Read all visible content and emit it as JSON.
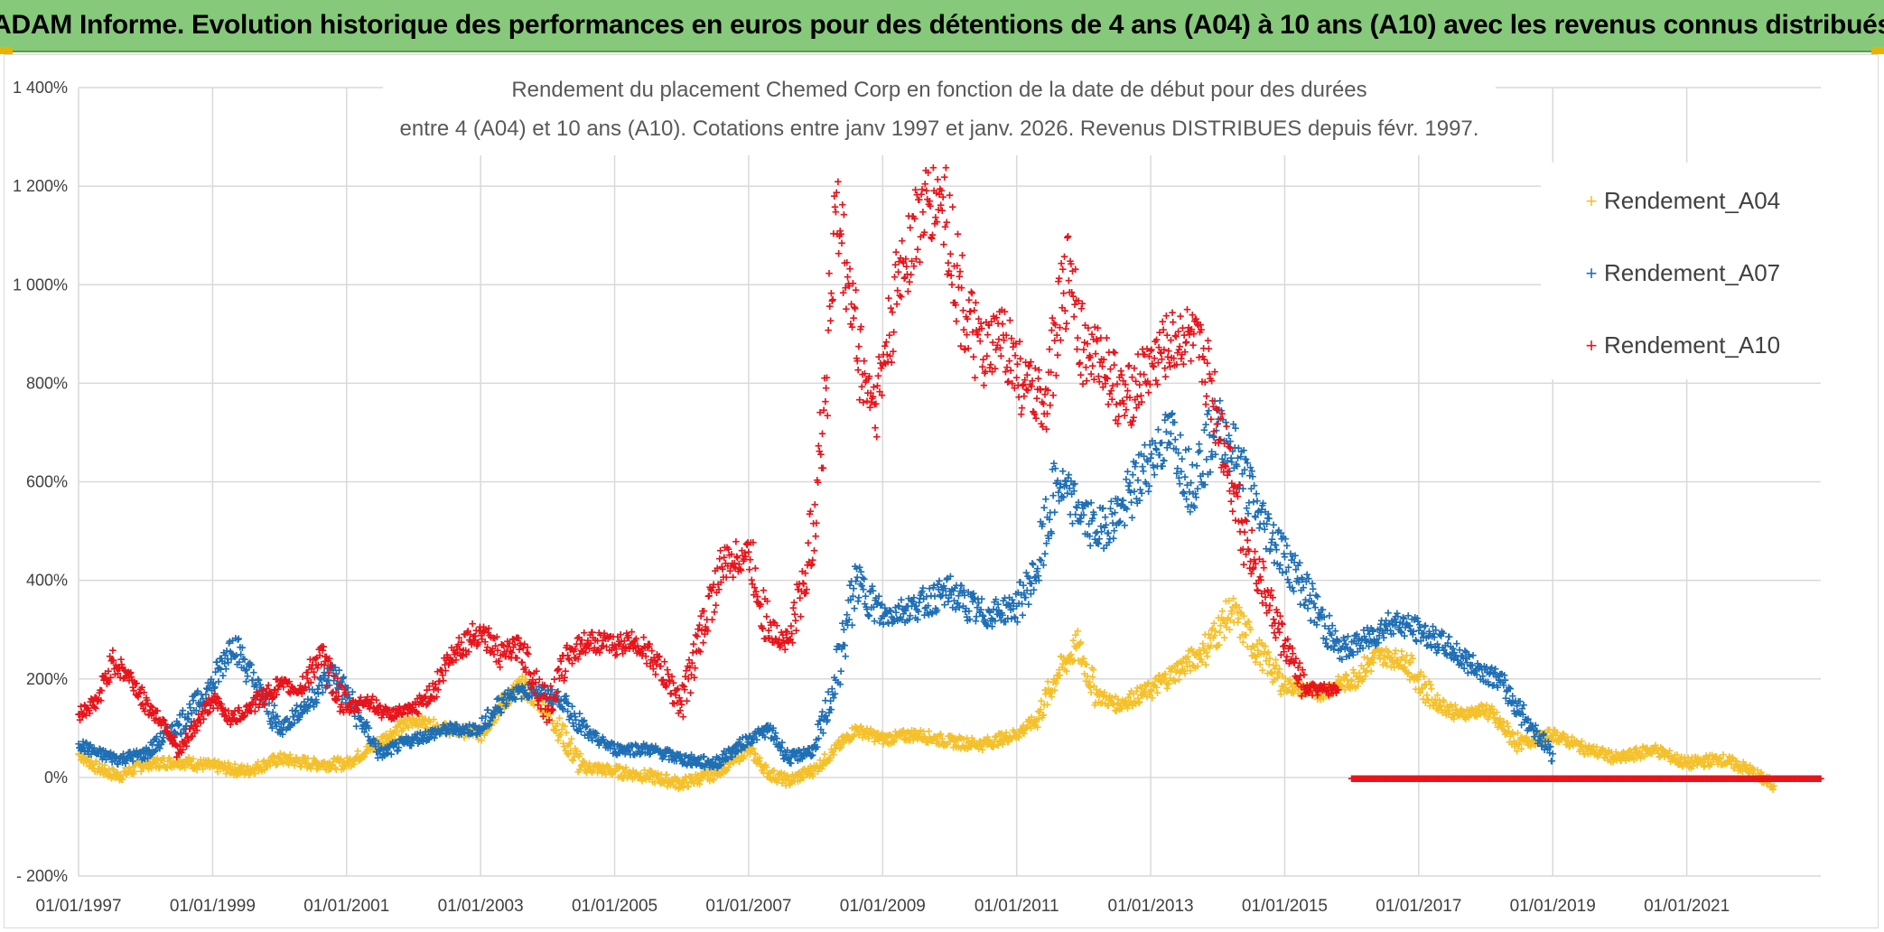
{
  "banner": {
    "title": "ADAM Informe. Evolution historique des performances en euros pour des détentions de 4 ans (A04) à 10 ans (A10) avec les revenus connus distribués"
  },
  "chart_data": {
    "type": "scatter",
    "title_line1": "Rendement du placement Chemed Corp en fonction de la date de début pour des durées",
    "title_line2": "entre 4 (A04) et 10 ans (A10). Cotations entre janv 1997 et janv. 2026. Revenus DISTRIBUES depuis févr. 1997.",
    "xlabel": "",
    "ylabel": "",
    "xlim": [
      1997.0,
      2023.0
    ],
    "ylim": [
      -200,
      1400
    ],
    "y_ticks": [
      -200,
      0,
      200,
      400,
      600,
      800,
      1000,
      1200,
      1400
    ],
    "y_tick_labels": [
      "- 200%",
      "0%",
      "200%",
      "400%",
      "600%",
      "800%",
      "1 000%",
      "1 200%",
      "1 400%"
    ],
    "x_ticks": [
      1997,
      1999,
      2001,
      2003,
      2005,
      2007,
      2009,
      2011,
      2013,
      2015,
      2017,
      2019,
      2021
    ],
    "x_tick_labels": [
      "01/01/1997",
      "01/01/1999",
      "01/01/2001",
      "01/01/2003",
      "01/01/2005",
      "01/01/2007",
      "01/01/2009",
      "01/01/2011",
      "01/01/2013",
      "01/01/2015",
      "01/01/2017",
      "01/01/2019",
      "01/01/2021"
    ],
    "grid": true,
    "legend_position": "top-right",
    "marker": "+",
    "series": [
      {
        "name": "Rendement_A04",
        "color": "#f5c12b",
        "x": [
          1997.0,
          1997.3,
          1997.6,
          1998.0,
          1998.5,
          1999.0,
          1999.5,
          2000.0,
          2000.5,
          2001.0,
          2001.5,
          2002.0,
          2002.5,
          2003.0,
          2003.3,
          2003.6,
          2004.0,
          2004.5,
          2005.0,
          2005.5,
          2006.0,
          2006.5,
          2007.0,
          2007.3,
          2007.6,
          2008.0,
          2008.3,
          2008.6,
          2009.0,
          2009.5,
          2010.0,
          2010.5,
          2011.0,
          2011.3,
          2011.6,
          2011.9,
          2012.2,
          2012.5,
          2013.0,
          2013.4,
          2013.8,
          2014.2,
          2014.6,
          2015.0,
          2015.5,
          2016.0,
          2016.4,
          2016.8,
          2017.2,
          2017.6,
          2018.0,
          2018.5,
          2019.0,
          2019.5,
          2020.0,
          2020.5,
          2021.0,
          2021.5,
          2021.9,
          2022.3
        ],
        "y": [
          50,
          20,
          5,
          30,
          35,
          25,
          15,
          40,
          30,
          30,
          75,
          120,
          100,
          90,
          150,
          190,
          140,
          25,
          15,
          5,
          -10,
          10,
          60,
          10,
          -5,
          20,
          60,
          100,
          80,
          90,
          75,
          70,
          90,
          120,
          210,
          270,
          170,
          150,
          180,
          220,
          260,
          340,
          260,
          190,
          175,
          200,
          250,
          240,
          160,
          130,
          140,
          70,
          90,
          60,
          40,
          60,
          30,
          40,
          20,
          -15
        ]
      },
      {
        "name": "Rendement_A07",
        "color": "#1f6fb5",
        "x": [
          1997.0,
          1997.3,
          1997.6,
          1998.0,
          1998.5,
          1999.0,
          1999.3,
          1999.6,
          2000.0,
          2000.4,
          2000.8,
          2001.2,
          2001.5,
          2002.0,
          2002.5,
          2003.0,
          2003.4,
          2003.8,
          2004.2,
          2004.6,
          2005.0,
          2005.5,
          2006.0,
          2006.5,
          2007.0,
          2007.3,
          2007.6,
          2008.0,
          2008.3,
          2008.6,
          2009.0,
          2009.5,
          2010.0,
          2010.5,
          2011.0,
          2011.3,
          2011.6,
          2011.9,
          2012.2,
          2012.6,
          2013.0,
          2013.3,
          2013.6,
          2014.0,
          2014.3,
          2014.6,
          2015.0,
          2015.4,
          2015.8,
          2016.2,
          2016.6,
          2017.0,
          2017.4,
          2017.8,
          2018.2,
          2018.6,
          2019.0
        ],
        "y": [
          70,
          50,
          40,
          50,
          110,
          190,
          280,
          200,
          100,
          150,
          220,
          120,
          50,
          80,
          100,
          100,
          170,
          180,
          160,
          90,
          60,
          60,
          40,
          30,
          80,
          100,
          40,
          60,
          200,
          400,
          330,
          350,
          380,
          330,
          350,
          420,
          600,
          550,
          500,
          550,
          650,
          700,
          600,
          720,
          650,
          540,
          450,
          360,
          260,
          280,
          320,
          300,
          270,
          230,
          200,
          120,
          50
        ]
      },
      {
        "name": "Rendement_A10",
        "color": "#e8141b",
        "x": [
          1997.0,
          1997.3,
          1997.5,
          1997.8,
          1998.0,
          1998.3,
          1998.5,
          1998.8,
          1999.0,
          1999.3,
          1999.6,
          2000.0,
          2000.3,
          2000.6,
          2001.0,
          2001.3,
          2001.6,
          2002.0,
          2002.3,
          2002.6,
          2003.0,
          2003.3,
          2003.6,
          2004.0,
          2004.3,
          2004.6,
          2005.0,
          2005.3,
          2005.6,
          2006.0,
          2006.3,
          2006.6,
          2007.0,
          2007.3,
          2007.6,
          2007.9,
          2008.1,
          2008.3,
          2008.5,
          2008.7,
          2008.9,
          2009.1,
          2009.3,
          2009.6,
          2009.9,
          2010.2,
          2010.5,
          2010.8,
          2011.1,
          2011.4,
          2011.6,
          2011.8,
          2012.0,
          2012.3,
          2012.6,
          2012.9,
          2013.2,
          2013.5,
          2013.8,
          2014.1,
          2014.4,
          2014.7,
          2015.0,
          2015.3,
          2015.6,
          2015.8
        ],
        "y": [
          130,
          160,
          240,
          200,
          150,
          110,
          50,
          120,
          160,
          120,
          150,
          190,
          180,
          250,
          140,
          160,
          130,
          140,
          180,
          260,
          300,
          250,
          270,
          140,
          250,
          280,
          270,
          280,
          240,
          150,
          300,
          430,
          460,
          300,
          280,
          440,
          700,
          1150,
          1000,
          820,
          760,
          900,
          1050,
          1150,
          1180,
          950,
          850,
          900,
          800,
          760,
          900,
          1050,
          870,
          850,
          760,
          820,
          870,
          900,
          850,
          680,
          500,
          380,
          270,
          180,
          180,
          180
        ]
      },
      {
        "name": "Rendement_A10_tail",
        "legend": false,
        "color": "#e8141b",
        "x": [
          2016.0,
          2023.0
        ],
        "y": [
          0,
          0
        ]
      }
    ]
  },
  "legend": {
    "a04_label": "Rendement_A04",
    "a07_label": "Rendement_A07",
    "a10_label": "Rendement_A10",
    "marker": "+"
  }
}
